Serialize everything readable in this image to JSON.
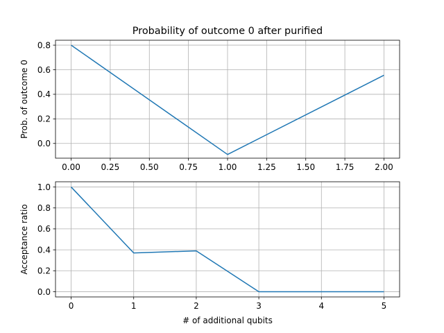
{
  "chart_data": [
    {
      "type": "line",
      "title": "Probability of outcome 0 after purified",
      "xlabel": "",
      "ylabel": "Prob. of outcome 0",
      "xlim": [
        -0.1,
        2.1
      ],
      "ylim": [
        -0.12,
        0.84
      ],
      "xticks": [
        0.0,
        0.25,
        0.5,
        0.75,
        1.0,
        1.25,
        1.5,
        1.75,
        2.0
      ],
      "xtick_labels": [
        "0.00",
        "0.25",
        "0.50",
        "0.75",
        "1.00",
        "1.25",
        "1.50",
        "1.75",
        "2.00"
      ],
      "yticks": [
        0.0,
        0.2,
        0.4,
        0.6,
        0.8
      ],
      "ytick_labels": [
        "0.0",
        "0.2",
        "0.4",
        "0.6",
        "0.8"
      ],
      "grid": true,
      "series": [
        {
          "x": [
            0,
            1,
            2
          ],
          "values": [
            0.8,
            -0.09,
            0.555
          ],
          "color": "#1f77b4"
        }
      ]
    },
    {
      "type": "line",
      "title": "",
      "xlabel": "# of additional qubits",
      "ylabel": "Acceptance ratio",
      "xlim": [
        -0.25,
        5.25
      ],
      "ylim": [
        -0.05,
        1.05
      ],
      "xticks": [
        0,
        1,
        2,
        3,
        4,
        5
      ],
      "xtick_labels": [
        "0",
        "1",
        "2",
        "3",
        "4",
        "5"
      ],
      "yticks": [
        0.0,
        0.2,
        0.4,
        0.6,
        0.8,
        1.0
      ],
      "ytick_labels": [
        "0.0",
        "0.2",
        "0.4",
        "0.6",
        "0.8",
        "1.0"
      ],
      "grid": true,
      "series": [
        {
          "x": [
            0,
            1,
            2,
            3,
            4,
            5
          ],
          "values": [
            1.0,
            0.37,
            0.39,
            0.0,
            0.0,
            0.0
          ],
          "color": "#1f77b4"
        }
      ]
    }
  ]
}
